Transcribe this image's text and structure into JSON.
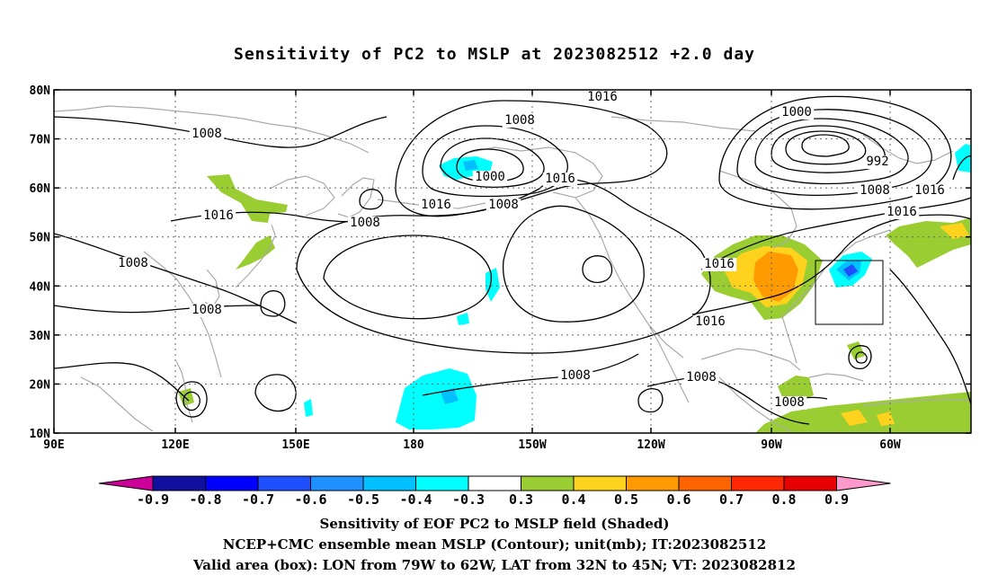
{
  "title": "Sensitivity of PC2 to MSLP at 2023082512 +2.0 day",
  "map": {
    "lat_labels": [
      "80N",
      "70N",
      "60N",
      "50N",
      "40N",
      "30N",
      "20N",
      "10N"
    ],
    "lon_labels": [
      "90E",
      "120E",
      "150E",
      "180",
      "150W",
      "120W",
      "90W",
      "60W"
    ],
    "grid": "dotted",
    "colors": {
      "contour": "#000000",
      "coast": "#aaaaaa",
      "grid": "#666666"
    },
    "valid_box": {
      "lon_from": "79W",
      "lon_to": "62W",
      "lat_from": "32N",
      "lat_to": "45N"
    },
    "contour_labels": [
      {
        "text": "1016"
      },
      {
        "text": "1008"
      },
      {
        "text": "1000"
      },
      {
        "text": "1008"
      },
      {
        "text": "1000"
      },
      {
        "text": "1016"
      },
      {
        "text": "1016"
      },
      {
        "text": "1008"
      },
      {
        "text": "992"
      },
      {
        "text": "1008"
      },
      {
        "text": "1016"
      },
      {
        "text": "1016"
      },
      {
        "text": "1016"
      },
      {
        "text": "1008"
      },
      {
        "text": "1008"
      },
      {
        "text": "1016"
      },
      {
        "text": "1008"
      },
      {
        "text": "1016"
      },
      {
        "text": "1008"
      },
      {
        "text": "1008"
      }
    ]
  },
  "colorbar": {
    "labels": [
      "-0.9",
      "-0.8",
      "-0.7",
      "-0.6",
      "-0.5",
      "-0.4",
      "-0.3",
      "0.3",
      "0.4",
      "0.5",
      "0.6",
      "0.7",
      "0.8",
      "0.9"
    ],
    "colors": [
      "#cc0099",
      "#1010a0",
      "#0000ff",
      "#1e50ff",
      "#1e90ff",
      "#00c0ff",
      "#00ffff",
      "#ffffff",
      "#9acd32",
      "#ffd21e",
      "#ff9a00",
      "#ff6400",
      "#ff2800",
      "#e60000",
      "#ff99cc"
    ]
  },
  "captions": [
    "Sensitivity of EOF PC2 to MSLP field (Shaded)",
    "NCEP+CMC ensemble mean MSLP (Contour); unit(mb); IT:2023082512",
    "Valid area (box): LON from 79W to 62W, LAT from 32N to 45N; VT: 2023082812"
  ]
}
